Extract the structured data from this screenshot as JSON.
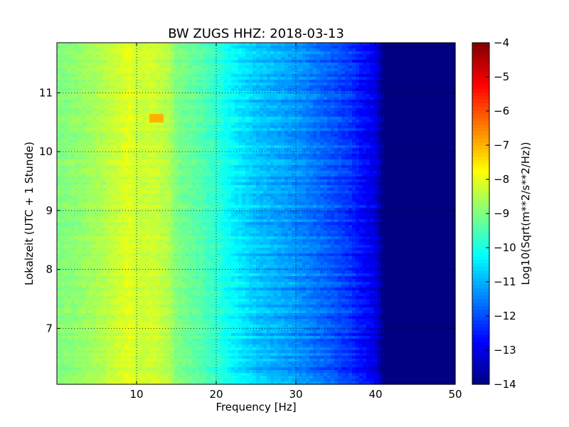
{
  "chart_data": {
    "type": "heatmap",
    "title": "BW ZUGS HHZ: 2018-03-13",
    "xlabel": "Frequency [Hz]",
    "ylabel": "Lokalzeit (UTC + 1 Stunde)",
    "colorbar_label": "Log10(Sqrt(m**2/s**2/Hz))",
    "xlim": [
      0,
      50
    ],
    "ylim": [
      11.85,
      6.05
    ],
    "y_inverted": true,
    "x_ticks": [
      10,
      20,
      30,
      40,
      50
    ],
    "x_tick_labels": [
      "10",
      "20",
      "30",
      "40",
      "50"
    ],
    "y_ticks": [
      7,
      8,
      9,
      10,
      11
    ],
    "y_tick_labels": [
      "7",
      "8",
      "9",
      "10",
      "11"
    ],
    "clim": [
      -14,
      -4
    ],
    "colorbar_ticks": [
      -4,
      -5,
      -6,
      -7,
      -8,
      -9,
      -10,
      -11,
      -12,
      -13,
      -14
    ],
    "colorbar_tick_labels": [
      "−4",
      "−5",
      "−6",
      "−7",
      "−8",
      "−9",
      "−10",
      "−11",
      "−12",
      "−13",
      "−14"
    ],
    "colormap": "jet",
    "grid": true,
    "spectral_profile": {
      "frequency_hz": [
        0,
        2,
        5,
        8,
        9,
        10,
        12,
        14,
        15,
        18,
        20,
        22,
        25,
        28,
        30,
        33,
        35,
        37,
        38,
        40,
        41,
        42,
        50
      ],
      "log10_psd": [
        -9.0,
        -8.9,
        -8.6,
        -8.2,
        -8.0,
        -8.3,
        -8.2,
        -8.5,
        -9.0,
        -9.4,
        -9.8,
        -10.3,
        -10.8,
        -11.1,
        -11.3,
        -11.7,
        -12.0,
        -12.3,
        -12.6,
        -13.0,
        -14.0,
        -14.0,
        -14.0
      ]
    },
    "annotations": {
      "hotspot": {
        "frequency_hz": 12.5,
        "time_h": 10.57,
        "log10_psd": -7.0
      }
    }
  }
}
